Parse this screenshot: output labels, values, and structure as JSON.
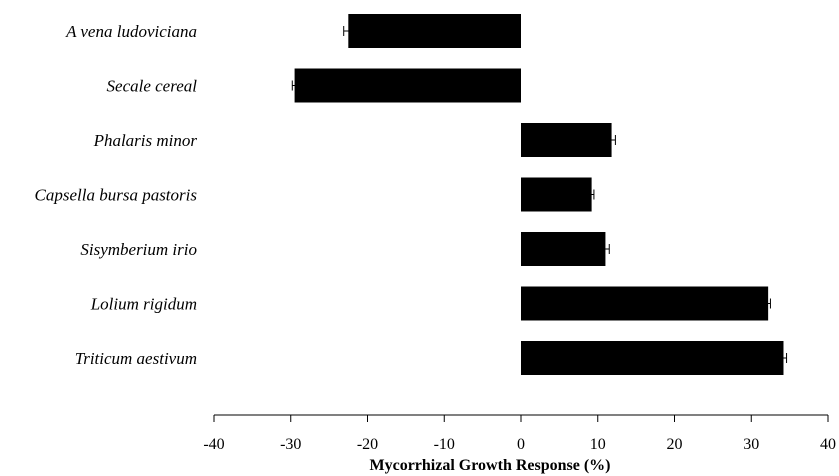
{
  "chart_data": {
    "type": "bar",
    "orientation": "horizontal",
    "categories": [
      "A vena ludoviciana",
      "Secale cereal",
      "Phalaris minor",
      "Capsella bursa pastoris",
      "Sisymberium irio",
      "Lolium rigidum",
      "Triticum aestivum"
    ],
    "values": [
      -22.5,
      -29.5,
      11.8,
      9.2,
      11.0,
      32.2,
      34.2
    ],
    "errors": [
      0.6,
      0.3,
      0.5,
      0.3,
      0.5,
      0.3,
      0.4
    ],
    "xlabel": "Mycorrhizal Growth Response (%)",
    "xlim": [
      -40,
      40
    ],
    "xticks": [
      -40,
      -30,
      -20,
      -10,
      0,
      10,
      20,
      30,
      40
    ],
    "grid": false,
    "legend": "none",
    "bar_color": "#000000"
  }
}
